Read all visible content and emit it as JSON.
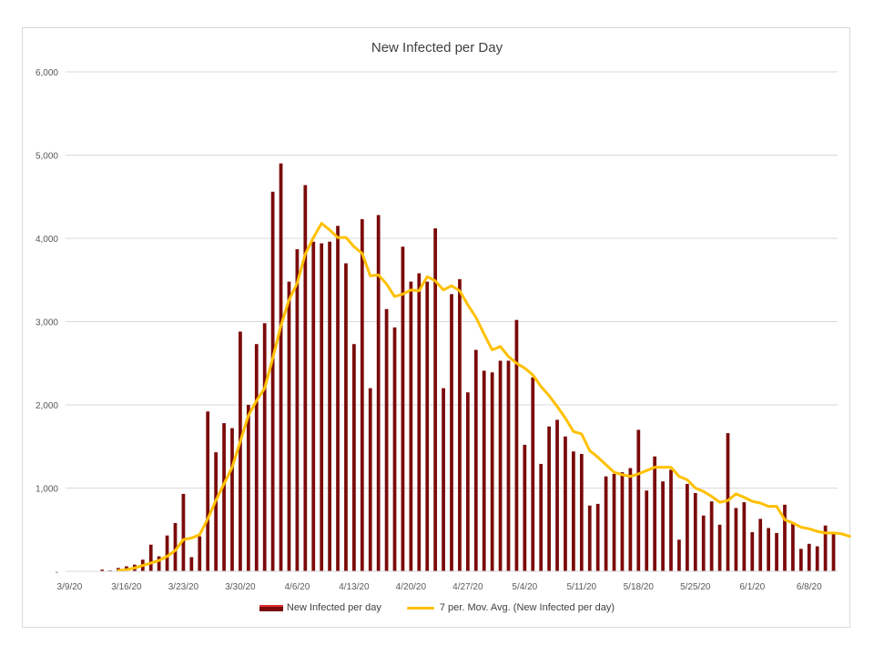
{
  "chart_data": {
    "type": "bar",
    "title": "New Infected per Day",
    "xlabel": "",
    "ylabel": "",
    "ylim": [
      0,
      6000
    ],
    "yticks": [
      0,
      1000,
      2000,
      3000,
      4000,
      5000,
      6000
    ],
    "ytick_labels": [
      "-",
      "1,000",
      "2,000",
      "3,000",
      "4,000",
      "5,000",
      "6,000"
    ],
    "xtick_labels": [
      "3/9/20",
      "3/16/20",
      "3/23/20",
      "3/30/20",
      "4/6/20",
      "4/13/20",
      "4/20/20",
      "4/27/20",
      "5/4/20",
      "5/11/20",
      "5/18/20",
      "5/25/20",
      "6/1/20",
      "6/8/20"
    ],
    "x_start": "3/9/20",
    "grid": true,
    "legend_position": "bottom",
    "colors": {
      "bar": "#7b0a0a",
      "line": "#ffc000",
      "grid": "#d9d9d9"
    },
    "series": [
      {
        "name": "New Infected per day",
        "type": "bar",
        "values": [
          0,
          0,
          0,
          0,
          20,
          10,
          40,
          60,
          80,
          140,
          320,
          180,
          430,
          580,
          930,
          170,
          420,
          1920,
          1430,
          1780,
          1720,
          2880,
          2000,
          2730,
          2980,
          4560,
          4900,
          3480,
          3870,
          4640,
          3960,
          3940,
          3960,
          4150,
          3700,
          2730,
          4230,
          2200,
          4280,
          3150,
          2930,
          3900,
          3480,
          3580,
          3480,
          4120,
          2200,
          3330,
          3510,
          2150,
          2660,
          2410,
          2390,
          2530,
          2530,
          3020,
          1520,
          2330,
          1290,
          1740,
          1820,
          1620,
          1440,
          1410,
          790,
          810,
          1140,
          1170,
          1190,
          1240,
          1700,
          970,
          1380,
          1080,
          1220,
          380,
          1050,
          940,
          670,
          840,
          560,
          1660,
          760,
          830,
          470,
          630,
          520,
          460,
          800,
          590,
          270,
          330,
          300,
          550,
          460
        ]
      },
      {
        "name": "7 per. Mov. Avg. (New Infected per day)",
        "type": "line",
        "start_index": 6,
        "values": [
          10,
          20,
          40,
          70,
          100,
          130,
          180,
          250,
          380,
          400,
          440,
          630,
          850,
          1050,
          1250,
          1560,
          1870,
          2050,
          2200,
          2560,
          2950,
          3260,
          3460,
          3810,
          4010,
          4180,
          4100,
          4010,
          4010,
          3900,
          3820,
          3550,
          3560,
          3450,
          3300,
          3330,
          3380,
          3370,
          3540,
          3490,
          3380,
          3430,
          3370,
          3200,
          3050,
          2850,
          2660,
          2700,
          2580,
          2500,
          2440,
          2360,
          2220,
          2110,
          1980,
          1840,
          1680,
          1650,
          1450,
          1370,
          1280,
          1190,
          1160,
          1140,
          1170,
          1210,
          1250,
          1250,
          1250,
          1140,
          1100,
          1000,
          960,
          900,
          830,
          850,
          930,
          890,
          840,
          820,
          780,
          780,
          620,
          580,
          530,
          510,
          480,
          460,
          460,
          450,
          420
        ]
      }
    ]
  }
}
